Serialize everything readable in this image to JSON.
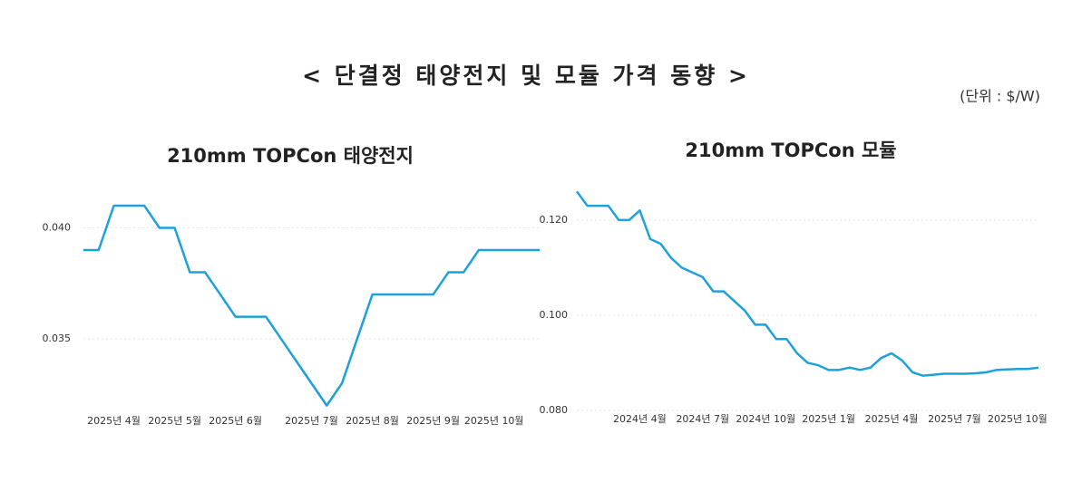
{
  "title": "< 단결정 태양전지 및 모듈 가격 동향 >",
  "unit": "(단위 : $/W)",
  "chart_data": [
    {
      "type": "line",
      "title": "210mm TOPCon 태양전지",
      "color": "#1ea1db",
      "grid": true,
      "categories": [
        null,
        null,
        "2025년 4월",
        null,
        null,
        null,
        "2025년 5월",
        null,
        null,
        null,
        "2025년 6월",
        null,
        null,
        null,
        null,
        "2025년 7월",
        null,
        null,
        null,
        "2025년 8월",
        null,
        null,
        null,
        "2025년 9월",
        null,
        null,
        null,
        "2025년 10월",
        null,
        null,
        null
      ],
      "values": [
        0.039,
        0.039,
        0.041,
        0.041,
        0.041,
        0.04,
        0.04,
        0.038,
        0.038,
        0.037,
        0.036,
        0.036,
        0.036,
        0.035,
        0.034,
        0.033,
        0.032,
        0.033,
        0.035,
        0.037,
        0.037,
        0.037,
        0.037,
        0.037,
        0.038,
        0.038,
        0.039,
        0.039,
        0.039,
        0.039,
        0.039
      ],
      "ylim": [
        0.0317,
        0.0421
      ],
      "yticks": [
        0.035,
        {
          "value": 0.04,
          "label": "0.040"
        }
      ]
    },
    {
      "type": "line",
      "title": "210mm TOPCon 모듈",
      "color": "#1ea1db",
      "grid": true,
      "categories": [
        null,
        null,
        null,
        null,
        null,
        null,
        "2024년 4월",
        null,
        null,
        null,
        null,
        null,
        "2024년 7월",
        null,
        null,
        null,
        null,
        null,
        "2024년 10월",
        null,
        null,
        null,
        null,
        null,
        "2025년 1월",
        null,
        null,
        null,
        null,
        null,
        "2025년 4월",
        null,
        null,
        null,
        null,
        null,
        "2025년 7월",
        null,
        null,
        null,
        null,
        null,
        "2025년 10월",
        null,
        null
      ],
      "values": [
        0.126,
        0.123,
        0.123,
        0.123,
        0.12,
        0.12,
        0.122,
        0.116,
        0.115,
        0.112,
        0.11,
        0.109,
        0.108,
        0.105,
        0.105,
        0.103,
        0.101,
        0.098,
        0.098,
        0.095,
        0.095,
        0.092,
        0.09,
        0.0895,
        0.0885,
        0.0885,
        0.089,
        0.0885,
        0.089,
        0.091,
        0.092,
        0.0905,
        0.088,
        0.0873,
        0.0875,
        0.0877,
        0.0877,
        0.0877,
        0.0878,
        0.088,
        0.0885,
        0.0886,
        0.0887,
        0.0887,
        0.089
      ],
      "ylim": [
        0.08,
        0.1272
      ],
      "yticks": [
        {
          "value": 0.08,
          "label": "0.080"
        },
        {
          "value": 0.1,
          "label": "0.100"
        },
        {
          "value": 0.12,
          "label": "0.120"
        }
      ]
    }
  ]
}
